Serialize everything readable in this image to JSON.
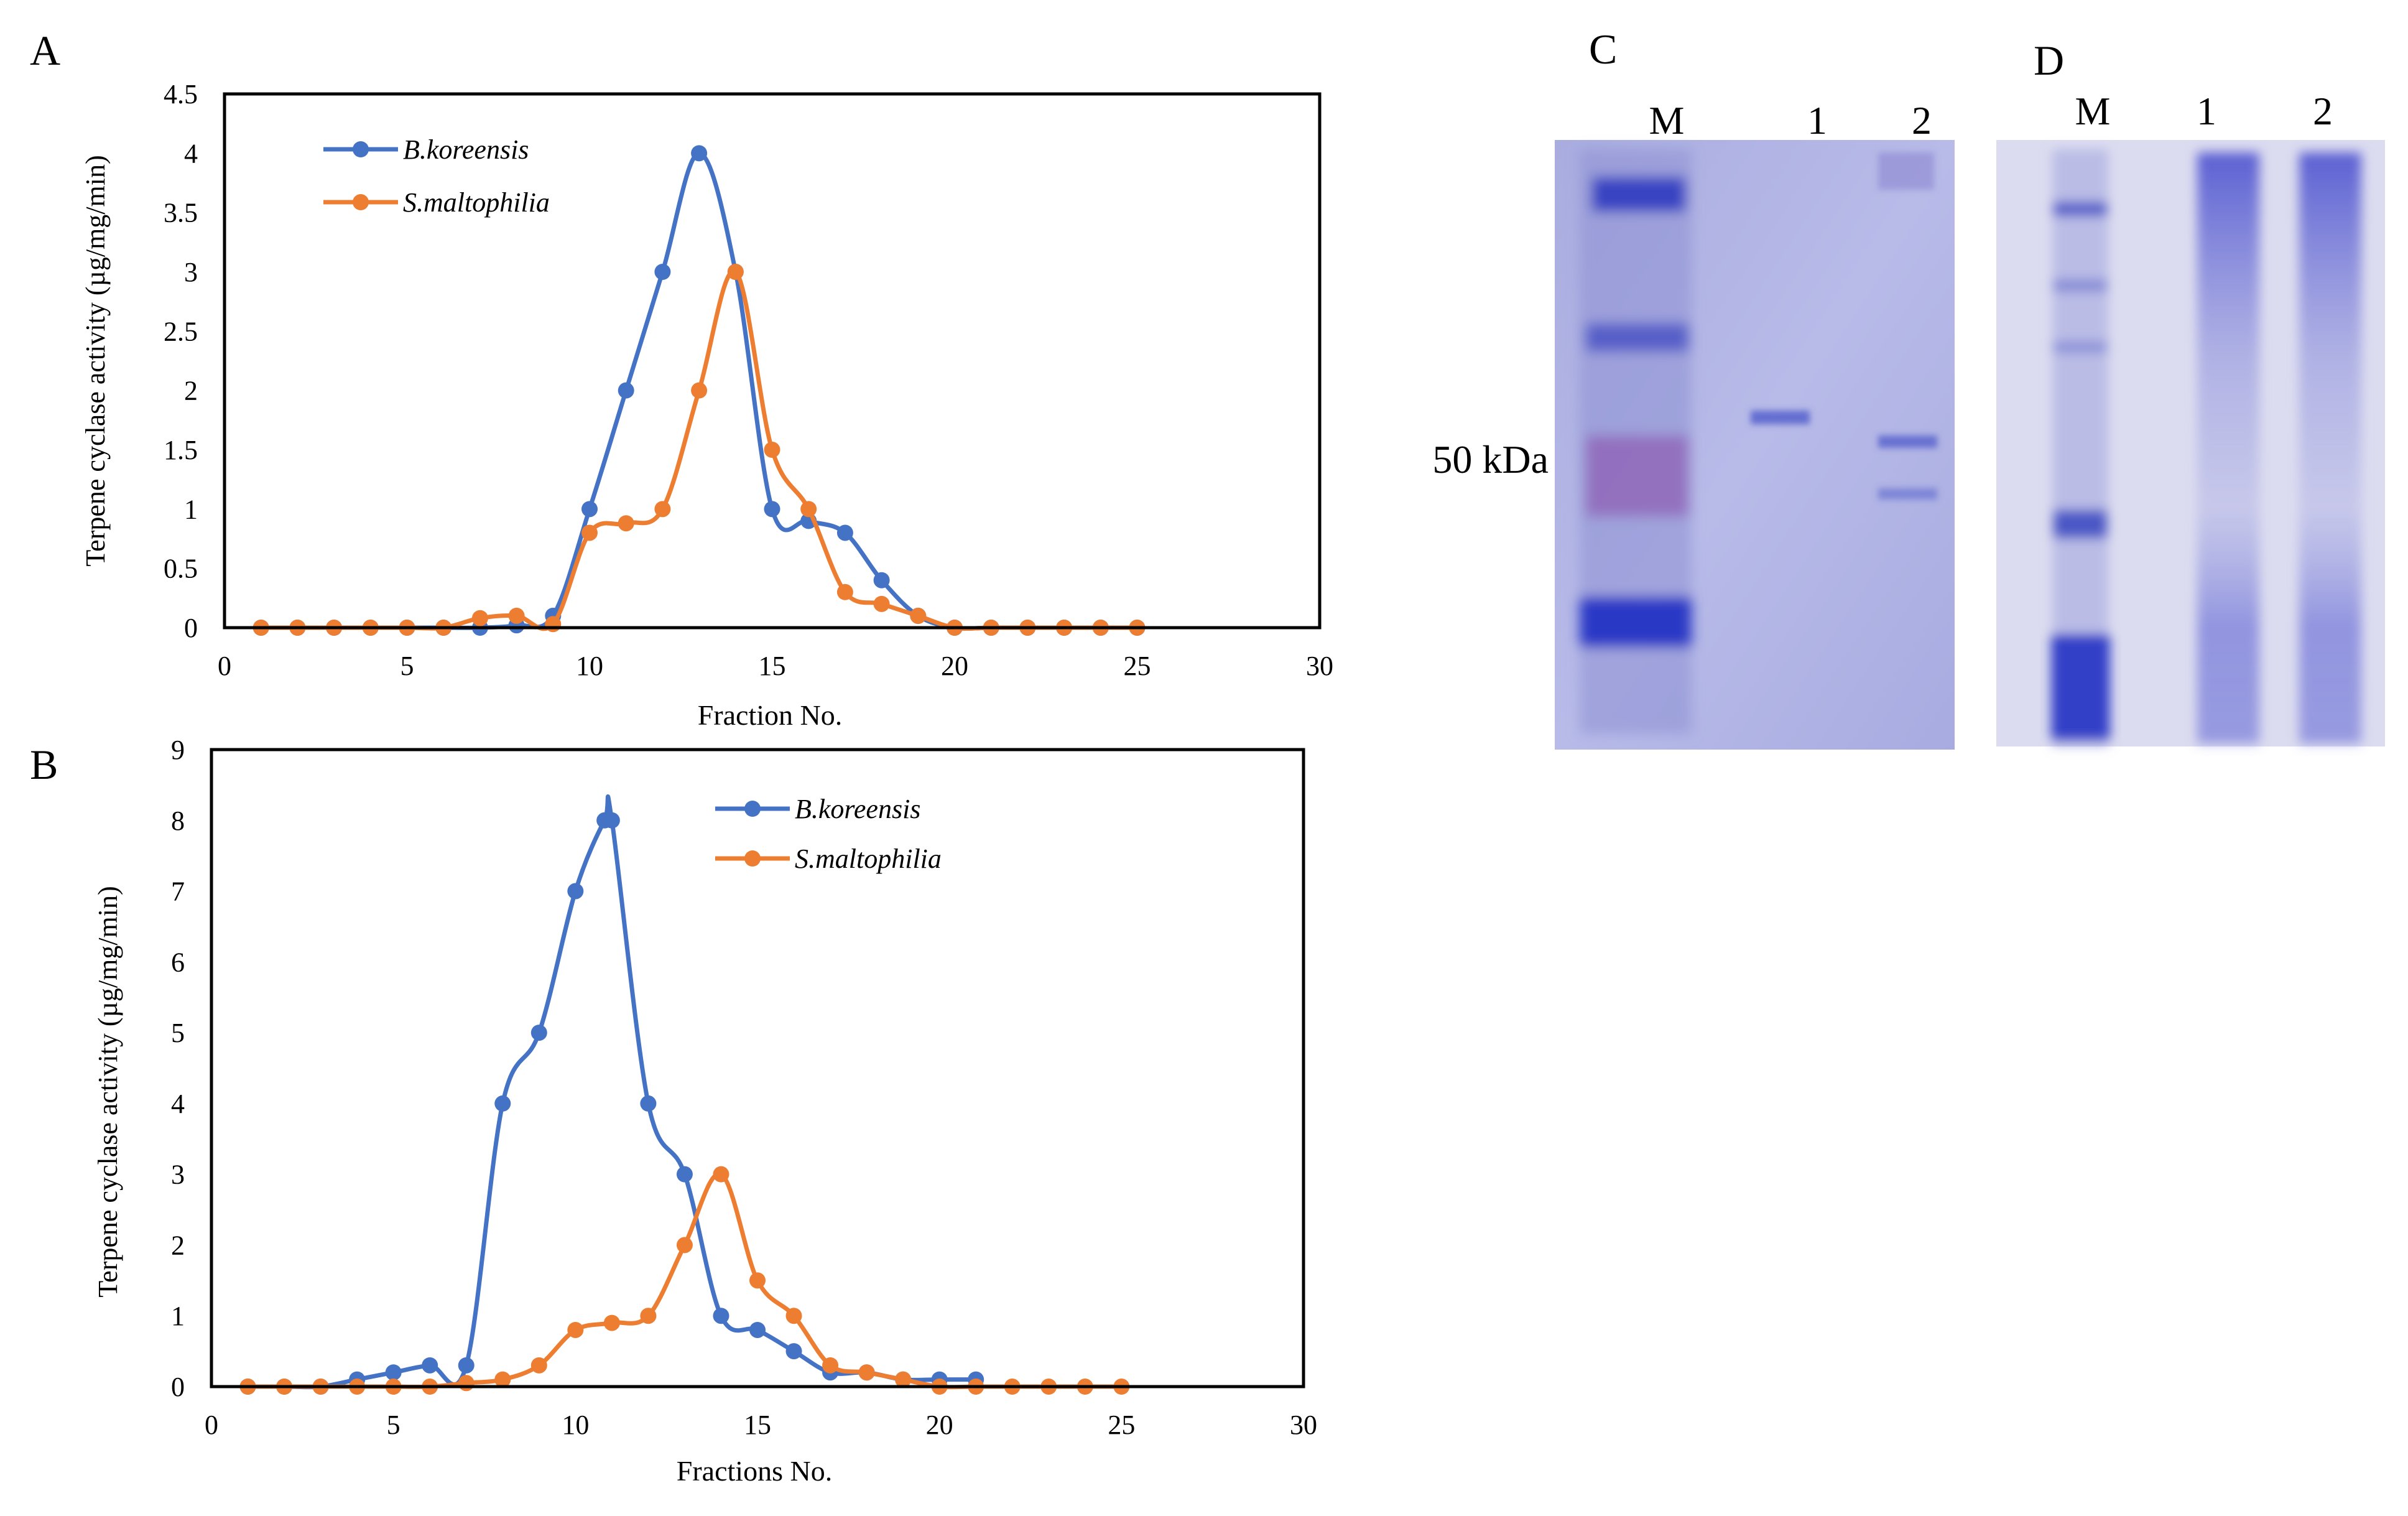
{
  "figure": {
    "panels": [
      "A",
      "B",
      "C",
      "D"
    ],
    "colors": {
      "koreensis": "#4472C4",
      "maltophilia": "#ED7D31",
      "gel_stain": "#4a52c8",
      "gel_bg": "#b3b7e6"
    }
  },
  "chart_data": [
    {
      "panel": "A",
      "type": "line",
      "title": "",
      "xlabel": "Fraction No.",
      "ylabel": "Terpene cyclase activity (µg/mg/min)",
      "xlim": [
        0,
        30
      ],
      "ylim": [
        0,
        4.5
      ],
      "xticks": [
        "0",
        "5",
        "10",
        "15",
        "20",
        "25",
        "30"
      ],
      "yticks": [
        "0",
        "0.5",
        "1",
        "1.5",
        "2",
        "2.5",
        "3",
        "3.5",
        "4",
        "4.5"
      ],
      "legend_position": "top-left",
      "x": [
        1,
        2,
        3,
        4,
        5,
        6,
        7,
        8,
        9,
        10,
        11,
        12,
        13,
        14,
        15,
        16,
        17,
        18,
        19,
        20,
        21,
        22,
        23,
        24,
        25
      ],
      "series": [
        {
          "name": "B.koreensis",
          "color": "#4472C4",
          "values": [
            0,
            0,
            0,
            0,
            0,
            0,
            0,
            0.02,
            0.1,
            1,
            2,
            3,
            4,
            3,
            1,
            0.9,
            0.8,
            0.4,
            0.1,
            0,
            0,
            0,
            0,
            0,
            0
          ]
        },
        {
          "name": "S.maltophilia",
          "color": "#ED7D31",
          "values": [
            0,
            0,
            0,
            0,
            0,
            0,
            0.08,
            0.1,
            0.03,
            0.8,
            0.88,
            1,
            2,
            3,
            1.5,
            1,
            0.3,
            0.2,
            0.1,
            0,
            0,
            0,
            0,
            0,
            0
          ]
        }
      ]
    },
    {
      "panel": "B",
      "type": "line",
      "title": "",
      "xlabel": "Fractions No.",
      "ylabel": "Terpene cyclase activity (µg/mg/min)",
      "xlim": [
        0,
        30
      ],
      "ylim": [
        0,
        9
      ],
      "xticks": [
        "0",
        "5",
        "10",
        "15",
        "20",
        "25",
        "30"
      ],
      "yticks": [
        "0",
        "1",
        "2",
        "3",
        "4",
        "5",
        "6",
        "7",
        "8",
        "9"
      ],
      "legend_position": "top-right",
      "x": [
        1,
        2,
        3,
        4,
        5,
        6,
        7,
        8,
        9,
        10,
        11,
        12,
        13,
        14,
        15,
        16,
        17,
        18,
        19,
        20,
        21,
        22,
        23,
        24,
        25
      ],
      "series": [
        {
          "name": "B.koreensis",
          "color": "#4472C4",
          "x": [
            1,
            2,
            3,
            4,
            5,
            6,
            7,
            8,
            9,
            10,
            10.8,
            11,
            12,
            13,
            14,
            15,
            16,
            17,
            18,
            19,
            20,
            21
          ],
          "values": [
            0,
            0,
            0,
            0.1,
            0.2,
            0.3,
            0.3,
            4,
            5,
            7,
            8,
            8,
            4,
            3,
            1,
            0.8,
            0.5,
            0.2,
            0.2,
            0.1,
            0.1,
            0.1
          ]
        },
        {
          "name": "S.maltophilia",
          "color": "#ED7D31",
          "values": [
            0,
            0,
            0,
            0,
            0,
            0,
            0.05,
            0.1,
            0.3,
            0.8,
            0.9,
            1,
            2,
            3,
            1.5,
            1,
            0.3,
            0.2,
            0.1,
            0,
            0,
            0,
            0,
            0,
            0
          ]
        }
      ]
    }
  ],
  "gels": {
    "C": {
      "lane_labels": [
        "M",
        "1",
        "2"
      ],
      "marker_label": "50 kDa"
    },
    "D": {
      "lane_labels": [
        "M",
        "1",
        "2"
      ]
    }
  }
}
